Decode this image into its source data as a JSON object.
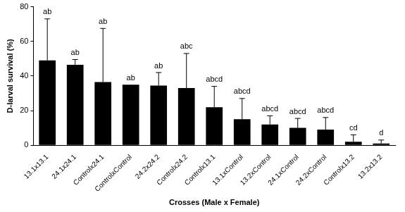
{
  "chart_data": {
    "type": "bar",
    "x_label": "Crosses (Male x Female)",
    "y_label": "D-larval survival (%)",
    "categories": [
      "13.1x13.1",
      "24.1x24.1",
      "Controlx24.1",
      "ControlxControl",
      "24.2x24.2",
      "Controlx24.2",
      "Controlx13.1",
      "13.1xControl",
      "13.2xControl",
      "24.1xControl",
      "24.2xControl",
      "Controlx13.2",
      "13.2x13.2"
    ],
    "values": [
      49,
      46.5,
      36.5,
      35,
      34.5,
      33,
      22,
      15,
      12,
      10,
      9,
      2,
      1
    ],
    "error": [
      24,
      3,
      31,
      0,
      7.5,
      20,
      12,
      12,
      5,
      5.5,
      7,
      4,
      2
    ],
    "annotations": [
      "ab",
      "ab",
      "ab",
      "ab",
      "ab",
      "abc",
      "abcd",
      "abcd",
      "abcd",
      "abcd",
      "abcd",
      "cd",
      "d"
    ],
    "color": "#000000",
    "ylim": [
      0,
      80
    ],
    "yticks": [
      0,
      20,
      40,
      60,
      80
    ],
    "grid": false
  }
}
